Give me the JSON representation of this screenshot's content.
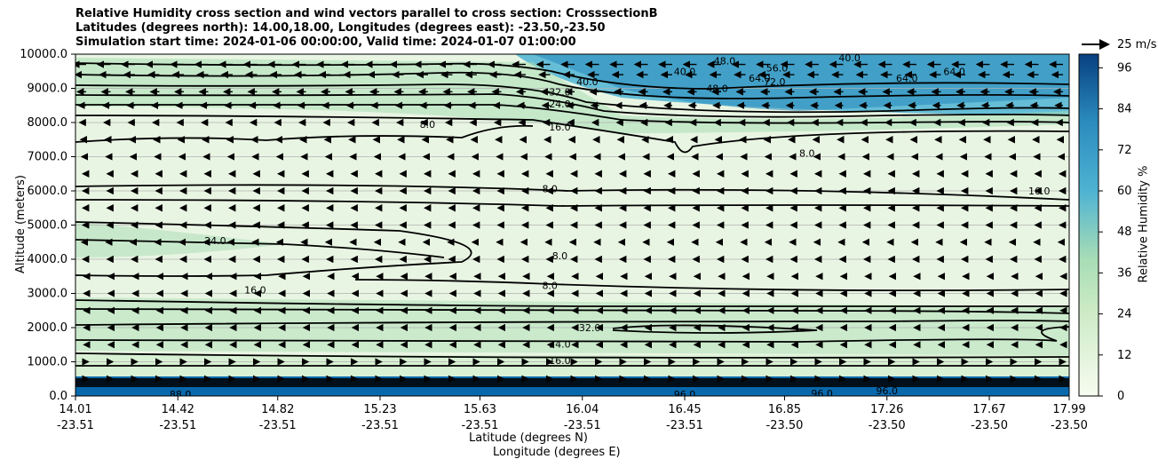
{
  "titles": {
    "line1": "Relative Humidity cross section and wind vectors parallel to cross section: CrosssectionB",
    "line2": "Latitudes (degrees north): 14.00,18.00, Longitudes (degrees east): -23.50,-23.50",
    "line3": "Simulation start time: 2024-01-06 00:00:00, Valid time: 2024-01-07 01:00:00"
  },
  "quiver_key": {
    "label": "25 m/s",
    "value": 25
  },
  "chart_data": {
    "type": "heatmap",
    "title": "Relative Humidity cross section and wind vectors parallel to cross section: CrosssectionB",
    "xlabel": "Latitude (degrees N)",
    "xlabel2": "Longitude (degrees E)",
    "ylabel": "Altitude (meters)",
    "colorbar_label": "Relative Humidity %",
    "ylim": [
      0,
      10000
    ],
    "xlim": [
      14.01,
      17.99
    ],
    "y_ticks": [
      "0.0",
      "1000.0",
      "2000.0",
      "3000.0",
      "4000.0",
      "5000.0",
      "6000.0",
      "7000.0",
      "8000.0",
      "9000.0",
      "10000.0"
    ],
    "y_tick_values": [
      0,
      1000,
      2000,
      3000,
      4000,
      5000,
      6000,
      7000,
      8000,
      9000,
      10000
    ],
    "x_ticks": [
      {
        "lat": "14.01",
        "lon": "-23.51"
      },
      {
        "lat": "14.42",
        "lon": "-23.51"
      },
      {
        "lat": "14.82",
        "lon": "-23.51"
      },
      {
        "lat": "15.23",
        "lon": "-23.51"
      },
      {
        "lat": "15.63",
        "lon": "-23.51"
      },
      {
        "lat": "16.04",
        "lon": "-23.51"
      },
      {
        "lat": "16.45",
        "lon": "-23.51"
      },
      {
        "lat": "16.85",
        "lon": "-23.50"
      },
      {
        "lat": "17.26",
        "lon": "-23.50"
      },
      {
        "lat": "17.67",
        "lon": "-23.50"
      },
      {
        "lat": "17.99",
        "lon": "-23.50"
      }
    ],
    "colorbar_ticks": [
      0,
      12,
      24,
      36,
      48,
      60,
      72,
      84,
      96
    ],
    "colorbar_range": [
      0,
      100
    ],
    "colors": {
      "low": "#f7fcf0",
      "mid": "#a8ddb5",
      "high": "#4eb3d3",
      "max": "#084081"
    },
    "contour_labels": [
      {
        "label": "8.0",
        "lat": 15.91,
        "alt": 6060
      },
      {
        "label": "8.0",
        "lat": 15.91,
        "alt": 3240
      },
      {
        "label": "8.0",
        "lat": 15.95,
        "alt": 4100
      },
      {
        "label": "8.0",
        "lat": 15.42,
        "alt": 7950
      },
      {
        "label": "8.0",
        "lat": 16.94,
        "alt": 7100
      },
      {
        "label": "16.0",
        "lat": 15.95,
        "alt": 7870
      },
      {
        "label": "16.0",
        "lat": 15.95,
        "alt": 1040
      },
      {
        "label": "16.0",
        "lat": 14.73,
        "alt": 3100
      },
      {
        "label": "16.0",
        "lat": 17.87,
        "alt": 6000
      },
      {
        "label": "24.0",
        "lat": 15.95,
        "alt": 8540
      },
      {
        "label": "24.0",
        "lat": 15.95,
        "alt": 1520
      },
      {
        "label": "24.0",
        "lat": 14.57,
        "alt": 4550
      },
      {
        "label": "32.0",
        "lat": 15.95,
        "alt": 8900
      },
      {
        "label": "32.0",
        "lat": 16.07,
        "alt": 2000
      },
      {
        "label": "40.0",
        "lat": 16.06,
        "alt": 9200
      },
      {
        "label": "40.0",
        "lat": 16.45,
        "alt": 9500
      },
      {
        "label": "40.0",
        "lat": 17.11,
        "alt": 9900
      },
      {
        "label": "48.0",
        "lat": 16.58,
        "alt": 9000
      },
      {
        "label": "48.0",
        "lat": 16.61,
        "alt": 9800
      },
      {
        "label": "56.0",
        "lat": 16.82,
        "alt": 9600
      },
      {
        "label": "64.0",
        "lat": 16.75,
        "alt": 9300
      },
      {
        "label": "64.0",
        "lat": 17.34,
        "alt": 9300
      },
      {
        "label": "64.0",
        "lat": 17.53,
        "alt": 9500
      },
      {
        "label": "72.0",
        "lat": 16.81,
        "alt": 9200
      },
      {
        "label": "88.0",
        "lat": 14.43,
        "alt": 50
      },
      {
        "label": "96.0",
        "lat": 16.45,
        "alt": 50
      },
      {
        "label": "96.0",
        "lat": 17.0,
        "alt": 80
      },
      {
        "label": "96.0",
        "lat": 17.26,
        "alt": 150
      }
    ],
    "wind_rows": [
      {
        "alt": 9700,
        "u": -12
      },
      {
        "alt": 9400,
        "u": -10
      },
      {
        "alt": 8900,
        "u": -8
      },
      {
        "alt": 8500,
        "u": -7
      },
      {
        "alt": 8000,
        "u": -6
      },
      {
        "alt": 7500,
        "u": -5
      },
      {
        "alt": 7000,
        "u": -4
      },
      {
        "alt": 6500,
        "u": -3
      },
      {
        "alt": 6000,
        "u": -3
      },
      {
        "alt": 5500,
        "u": -3
      },
      {
        "alt": 5000,
        "u": -3
      },
      {
        "alt": 4500,
        "u": -4
      },
      {
        "alt": 4000,
        "u": -3
      },
      {
        "alt": 3500,
        "u": -2
      },
      {
        "alt": 3000,
        "u": -2
      },
      {
        "alt": 2500,
        "u": -2
      },
      {
        "alt": 2000,
        "u": -2
      },
      {
        "alt": 1500,
        "u": -2
      },
      {
        "alt": 1000,
        "u": 2
      },
      {
        "alt": 500,
        "u": 2
      }
    ]
  }
}
